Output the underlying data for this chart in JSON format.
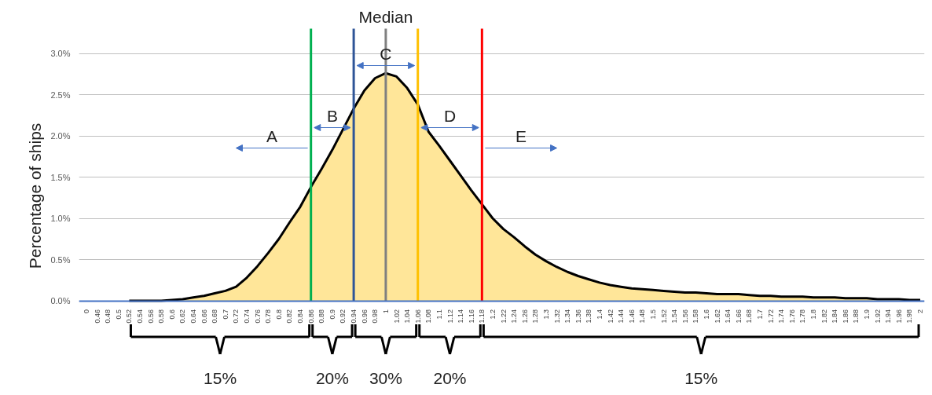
{
  "chart_data": {
    "type": "area",
    "ylabel": "Percentage of ships",
    "categories": [
      "0",
      "0.46",
      "0.48",
      "0.5",
      "0.52",
      "0.54",
      "0.56",
      "0.58",
      "0.6",
      "0.62",
      "0.64",
      "0.66",
      "0.68",
      "0.7",
      "0.72",
      "0.74",
      "0.76",
      "0.78",
      "0.8",
      "0.82",
      "0.84",
      "0.86",
      "0.88",
      "0.9",
      "0.92",
      "0.94",
      "0.96",
      "0.98",
      "1",
      "1.02",
      "1.04",
      "1.06",
      "1.08",
      "1.1",
      "1.12",
      "1.14",
      "1.16",
      "1.18",
      "1.2",
      "1.22",
      "1.24",
      "1.26",
      "1.28",
      "1.3",
      "1.32",
      "1.34",
      "1.36",
      "1.38",
      "1.4",
      "1.42",
      "1.44",
      "1.46",
      "1.48",
      "1.5",
      "1.52",
      "1.54",
      "1.56",
      "1.58",
      "1.6",
      "1.62",
      "1.64",
      "1.66",
      "1.68",
      "1.7",
      "1.72",
      "1.74",
      "1.76",
      "1.78",
      "1.8",
      "1.82",
      "1.84",
      "1.86",
      "1.88",
      "1.9",
      "1.92",
      "1.94",
      "1.96",
      "1.98",
      "2"
    ],
    "series": [
      {
        "color": "#ffe699",
        "values": [
          null,
          null,
          null,
          null,
          0,
          0,
          0,
          0,
          0.01,
          0.02,
          0.04,
          0.06,
          0.09,
          0.12,
          0.17,
          0.28,
          0.42,
          0.58,
          0.75,
          0.95,
          1.14,
          1.38,
          1.6,
          1.83,
          2.08,
          2.33,
          2.55,
          2.7,
          2.76,
          2.72,
          2.58,
          2.38,
          2.05,
          1.88,
          1.7,
          1.52,
          1.34,
          1.17,
          1.0,
          0.87,
          0.77,
          0.66,
          0.56,
          0.48,
          0.41,
          0.35,
          0.3,
          0.26,
          0.22,
          0.19,
          0.17,
          0.15,
          0.14,
          0.13,
          0.12,
          0.11,
          0.1,
          0.1,
          0.09,
          0.08,
          0.08,
          0.08,
          0.07,
          0.06,
          0.06,
          0.05,
          0.05,
          0.05,
          0.04,
          0.04,
          0.04,
          0.03,
          0.03,
          0.03,
          0.02,
          0.02,
          0.02,
          0.01,
          0.01
        ]
      }
    ],
    "ylim": [
      0,
      3.3
    ],
    "yticks": [
      {
        "value": 0,
        "label": "0.0%"
      },
      {
        "value": 0.5,
        "label": "0.5%"
      },
      {
        "value": 1,
        "label": "1.0%"
      },
      {
        "value": 1.5,
        "label": "1.5%"
      },
      {
        "value": 2,
        "label": "2.0%"
      },
      {
        "value": 2.5,
        "label": "2.5%"
      },
      {
        "value": 3,
        "label": "3.0%"
      }
    ],
    "grid": "y",
    "ref_lines": [
      {
        "axis": "x",
        "value": "0.86",
        "color": "#00b050"
      },
      {
        "axis": "x",
        "value": "0.94",
        "color": "#2f5597"
      },
      {
        "axis": "x",
        "value": "1",
        "label": "Median",
        "color": "#808080"
      },
      {
        "axis": "x",
        "value": "1.06",
        "color": "#ffc000"
      },
      {
        "axis": "x",
        "value": "1.18",
        "color": "#ff0000"
      }
    ],
    "annotations": [
      "A",
      "B",
      "C",
      "D",
      "E",
      "15%",
      "20%",
      "30%",
      "20%",
      "15%"
    ]
  }
}
